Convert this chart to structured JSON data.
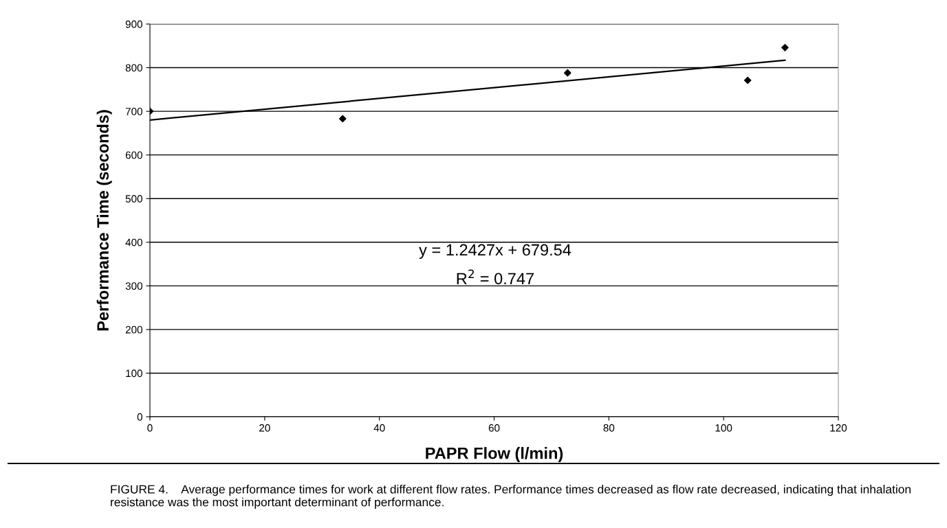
{
  "chart_data": {
    "type": "scatter",
    "xlabel": "PAPR Flow (l/min)",
    "ylabel": "Performance Time (seconds)",
    "xlim": [
      0,
      120
    ],
    "xticks": [
      0,
      20,
      40,
      60,
      80,
      100,
      120
    ],
    "ylim": [
      0,
      900
    ],
    "yticks": [
      0,
      100,
      200,
      300,
      400,
      500,
      600,
      700,
      800,
      900
    ],
    "grid": "y",
    "legend": false,
    "marker": "diamond",
    "series": [
      {
        "color": "#000000",
        "x": [
          0,
          33.6,
          72.8,
          104.2,
          110.7
        ],
        "values": [
          700,
          683,
          788,
          771,
          846
        ]
      },
      {
        "type": "line",
        "color": "#000000",
        "marker": "none",
        "line_style": "solid",
        "x": [
          0,
          110.7
        ],
        "values": [
          680,
          817
        ]
      }
    ],
    "annotations": [
      "y = 1.2427x + 679.54",
      "R$^{2}$ = 0.747",
      "FIGURE 4.    Average performance times for work at different flow rates. Performance times decreased as flow rate decreased, indicating that inhalation resistance was the most important determinant of performance."
    ]
  }
}
